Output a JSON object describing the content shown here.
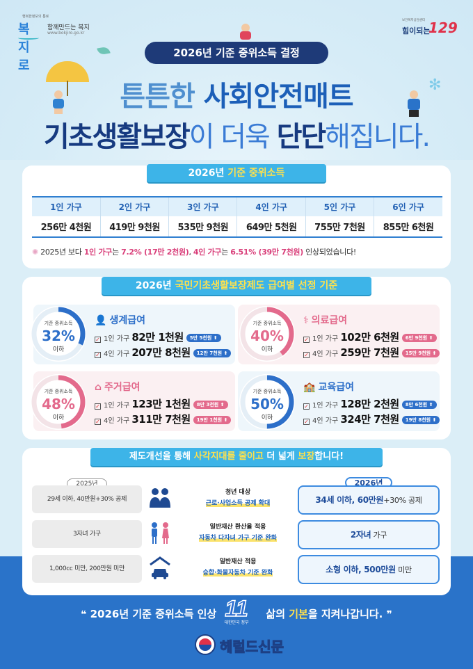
{
  "header": {
    "left_logo_tiny": "행복한정보의 통로",
    "left_logo_brand": "복지로",
    "left_logo_slogan": "함께만드는 복지",
    "left_logo_url": "www.bokjiro.go.kr",
    "right_logo_tiny": "보건복지상담센터",
    "right_logo_text": "힘이되는",
    "right_logo_number": "129"
  },
  "title_pill": "2026년 기준 중위소득 결정",
  "headline": {
    "line1_a": "튼튼한 ",
    "line1_b": "사회안전매트",
    "line2_a": "기초생활보장",
    "line2_b": "이 더욱 ",
    "line2_c": "단단",
    "line2_d": "해집니다."
  },
  "income": {
    "title_a": "2026년 ",
    "title_b": "기준 중위소득",
    "headers": [
      "1인 가구",
      "2인 가구",
      "3인 가구",
      "4인 가구",
      "5인 가구",
      "6인 가구"
    ],
    "values": [
      "256만 4천원",
      "419만 9천원",
      "535만 9천원",
      "649만 5천원",
      "755만 7천원",
      "855만 6천원"
    ],
    "note_a": "2025년 보다 ",
    "note_b": "1인 가구",
    "note_c": "는 ",
    "note_d": "7.2% (17만 2천원)",
    "note_e": ", ",
    "note_f": "4인 가구",
    "note_g": "는 ",
    "note_h": "6.51% (39만 7천원)",
    "note_i": " 인상되었습니다!"
  },
  "benefits": {
    "title_a": "2026년 ",
    "title_b": "국민기초생활보장제도 급여별 선정 기준",
    "ring_label": "기준 중위소득",
    "ring_suffix": "이하",
    "items": [
      {
        "name": "생계급여",
        "pct": "32%",
        "icon": "person-icon",
        "color": "#2d6fc9",
        "l1_prefix": "1인 가구",
        "l1_amt": "82만 1천원",
        "l1_chip": "5만 5천원 ⬆",
        "l2_prefix": "4인 가구",
        "l2_amt": "207만 8천원",
        "l2_chip": "12만 7천원 ⬆"
      },
      {
        "name": "의료급여",
        "pct": "40%",
        "icon": "stethoscope-icon",
        "color": "#e36a8c",
        "l1_prefix": "1인 가구",
        "l1_amt": "102만 6천원",
        "l1_chip": "6만 9천원 ⬆",
        "l2_prefix": "4인 가구",
        "l2_amt": "259만 7천원",
        "l2_chip": "15만 9천원 ⬆"
      },
      {
        "name": "주거급여",
        "pct": "48%",
        "icon": "house-icon",
        "color": "#e36a8c",
        "l1_prefix": "1인 가구",
        "l1_amt": "123만 1천원",
        "l1_chip": "8만 3천원 ⬆",
        "l2_prefix": "4인 가구",
        "l2_amt": "311만 7천원",
        "l2_chip": "19만 1천원 ⬆"
      },
      {
        "name": "교육급여",
        "pct": "50%",
        "icon": "school-icon",
        "color": "#2d6fc9",
        "l1_prefix": "1인 가구",
        "l1_amt": "128만 2천원",
        "l1_chip": "8만 6천원 ⬆",
        "l2_prefix": "4인 가구",
        "l2_amt": "324만 7천원",
        "l2_chip": "19만 8천원 ⬆"
      }
    ]
  },
  "reform": {
    "title_a": "제도개선을 통해 ",
    "title_b": "사각지대를 줄이고",
    "title_c": " 더 넓게 ",
    "title_d": "보장",
    "title_e": "합니다!",
    "old_year": "2025년",
    "new_year": "2026년",
    "rows": [
      {
        "old": "29세 이하, 40만원+30% 공제",
        "mid1": "청년 대상",
        "mid2": "근로·사업소득 공제 확대",
        "new_bold": "34세 이하, 60만원",
        "new_plain": "+30% 공제",
        "icon": "people-icon"
      },
      {
        "old": "3자녀 가구",
        "mid1": "일반재산 환산율 적용",
        "mid2": "자동차 다자녀 가구 기준 완화",
        "new_bold": "2자녀",
        "new_plain": " 가구",
        "icon": "family-icon"
      },
      {
        "old": "1,000cc 미만, 200만원 미만",
        "mid1": "일반재산 적용",
        "mid2": "승합·화물자동차 기준 완화",
        "new_bold": "소형 이하, 500만원",
        "new_plain": " 미만",
        "icon": "car-icon"
      }
    ]
  },
  "footer": {
    "quote_open": "❝",
    "slogan_a": " 2026년 기준 중위소득 인상 ",
    "slogan_b": "삶의 ",
    "slogan_c": "기본",
    "slogan_d": "을 지켜나갑니다.",
    "quote_close": "❞",
    "stamp_text": "11",
    "stamp_sub": "대한민국 정부",
    "brand": "헤럴드신문"
  },
  "colors": {
    "navy": "#1e3a78",
    "accent_blue": "#3db4e8",
    "pink": "#e36a8c",
    "band": "#2a73c9"
  }
}
